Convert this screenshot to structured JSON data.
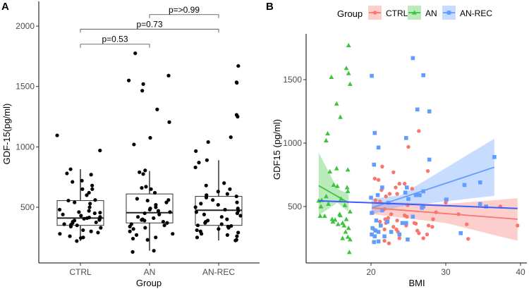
{
  "chart_data": [
    {
      "type": "box",
      "panel_label": "A",
      "xlabel": "Group",
      "ylabel": "GDF-15(pg/ml)",
      "categories": [
        "CTRL",
        "AN",
        "AN-REC"
      ],
      "yticks": [
        500,
        1000,
        1500,
        2000
      ],
      "ylim": [
        40,
        2200
      ],
      "boxes": [
        {
          "q1": 350,
          "median": 410,
          "q3": 555,
          "lower": 220,
          "upper": 815
        },
        {
          "q1": 370,
          "median": 455,
          "q3": 610,
          "lower": 140,
          "upper": 800
        },
        {
          "q1": 350,
          "median": 475,
          "q3": 590,
          "lower": 225,
          "upper": 890
        }
      ],
      "points": [
        [
          1095,
          970,
          815,
          780,
          770,
          720,
          710,
          680,
          650,
          650,
          620,
          600,
          560,
          555,
          540,
          530,
          500,
          480,
          470,
          460,
          455,
          450,
          440,
          430,
          420,
          415,
          410,
          405,
          400,
          395,
          390,
          380,
          375,
          370,
          360,
          355,
          350,
          340,
          330,
          310,
          300,
          290,
          280,
          260,
          250,
          245,
          220
        ],
        [
          1775,
          1590,
          1550,
          1520,
          1465,
          1310,
          1205,
          1075,
          1020,
          805,
          790,
          775,
          670,
          660,
          650,
          620,
          570,
          560,
          555,
          540,
          520,
          500,
          490,
          480,
          470,
          460,
          450,
          440,
          420,
          410,
          400,
          395,
          390,
          380,
          370,
          360,
          350,
          340,
          330,
          320,
          300,
          280,
          270,
          250,
          240,
          230,
          140,
          130
        ],
        [
          1670,
          1535,
          1530,
          1265,
          1250,
          1080,
          1040,
          965,
          890,
          870,
          830,
          700,
          680,
          650,
          630,
          610,
          600,
          590,
          580,
          560,
          540,
          530,
          520,
          500,
          490,
          480,
          470,
          460,
          450,
          440,
          430,
          420,
          400,
          390,
          380,
          370,
          360,
          350,
          345,
          340,
          330,
          320,
          310,
          300,
          290,
          280,
          270,
          260,
          250,
          230,
          225
        ]
      ],
      "comparisons": [
        {
          "from": 0,
          "to": 1,
          "y": 1850,
          "label": "p=0.53"
        },
        {
          "from": 0,
          "to": 2,
          "y": 1975,
          "label": "p=0.73"
        },
        {
          "from": 1,
          "to": 2,
          "y": 2095,
          "label": "p=>0.99"
        }
      ]
    },
    {
      "type": "scatter",
      "panel_label": "B",
      "xlabel": "BMI",
      "ylabel": "GDF15 (pg/ml)",
      "xlim": [
        12.3,
        41.5
      ],
      "ylim": [
        100,
        1950
      ],
      "xticks": [
        20,
        30,
        40
      ],
      "yticks": [
        500,
        1000,
        1500
      ],
      "legend": {
        "title": "Group",
        "position": "top"
      },
      "overall_fit": {
        "color": "#3d5cff",
        "line": [
          [
            13,
            545
          ],
          [
            39.6,
            485
          ]
        ]
      },
      "series": [
        {
          "name": "CTRL",
          "color": "#F8766D",
          "shape": "circle",
          "fit": [
            [
              20.1,
              490
            ],
            [
              39.6,
              400
            ]
          ],
          "ribbon": [
            [
              20.1,
              440,
              540
            ],
            [
              30,
              370,
              520
            ],
            [
              39.6,
              230,
              565
            ]
          ],
          "points": [
            [
              26.4,
              1095
            ],
            [
              25,
              970
            ],
            [
              21.5,
              815
            ],
            [
              27.6,
              780
            ],
            [
              23,
              770
            ],
            [
              20.5,
              720
            ],
            [
              21,
              710
            ],
            [
              23.8,
              680
            ],
            [
              24.5,
              680
            ],
            [
              23.3,
              650
            ],
            [
              25.5,
              640
            ],
            [
              21.4,
              630
            ],
            [
              22.5,
              600
            ],
            [
              23.5,
              600
            ],
            [
              22,
              580
            ],
            [
              30,
              555
            ],
            [
              20.6,
              550
            ],
            [
              21.2,
              540
            ],
            [
              30,
              530
            ],
            [
              37.3,
              500
            ],
            [
              24.9,
              510
            ],
            [
              21.8,
              480
            ],
            [
              28.7,
              455
            ],
            [
              31.7,
              440
            ],
            [
              20.2,
              450
            ],
            [
              22.7,
              440
            ],
            [
              24.5,
              430
            ],
            [
              24.8,
              420
            ],
            [
              22.3,
              410
            ],
            [
              21.9,
              400
            ],
            [
              28.3,
              400
            ],
            [
              23.5,
              390
            ],
            [
              21.2,
              380
            ],
            [
              22,
              370
            ],
            [
              25.8,
              370
            ],
            [
              26,
              365
            ],
            [
              32.8,
              360
            ],
            [
              24.7,
              350
            ],
            [
              27.7,
              350
            ],
            [
              28.2,
              340
            ],
            [
              39.6,
              350
            ],
            [
              23,
              340
            ],
            [
              23.4,
              320
            ],
            [
              20.4,
              320
            ],
            [
              21.8,
              320
            ],
            [
              26.2,
              310
            ],
            [
              23.6,
              300
            ],
            [
              26.4,
              290
            ],
            [
              27.5,
              280
            ],
            [
              23.8,
              250
            ],
            [
              27,
              250
            ],
            [
              33,
              245
            ],
            [
              21.8,
              230
            ],
            [
              22.4,
              210
            ]
          ]
        },
        {
          "name": "AN",
          "color": "#3DC43D",
          "shape": "triangle",
          "fit": [
            [
              13,
              665
            ],
            [
              17,
              530
            ]
          ],
          "ribbon": [
            [
              13,
              430,
              925
            ],
            [
              15.5,
              530,
              640
            ],
            [
              17,
              460,
              600
            ]
          ],
          "points": [
            [
              17,
              1770
            ],
            [
              16.7,
              1590
            ],
            [
              17,
              1550
            ],
            [
              14.7,
              1520
            ],
            [
              17.2,
              1465
            ],
            [
              15.4,
              1310
            ],
            [
              15.9,
              1205
            ],
            [
              14.2,
              1075
            ],
            [
              14,
              1020
            ],
            [
              15.4,
              800
            ],
            [
              16.9,
              790
            ],
            [
              14.5,
              775
            ],
            [
              15,
              670
            ],
            [
              15.5,
              660
            ],
            [
              16.8,
              650
            ],
            [
              16.9,
              620
            ],
            [
              14,
              580
            ],
            [
              13.4,
              550
            ],
            [
              13,
              545
            ],
            [
              16,
              560
            ],
            [
              13.3,
              500
            ],
            [
              14.3,
              520
            ],
            [
              16.5,
              510
            ],
            [
              17.2,
              460
            ],
            [
              15.9,
              430
            ],
            [
              13.2,
              425
            ],
            [
              13.8,
              425
            ],
            [
              14.8,
              400
            ],
            [
              15.2,
              395
            ],
            [
              14.9,
              380
            ],
            [
              16.2,
              370
            ],
            [
              15.6,
              360
            ],
            [
              16.4,
              350
            ],
            [
              17,
              330
            ],
            [
              16.6,
              300
            ],
            [
              16.2,
              250
            ],
            [
              16.9,
              260
            ],
            [
              17.2,
              240
            ],
            [
              17.1,
              140
            ],
            [
              15.8,
              440
            ],
            [
              16.7,
              400
            ]
          ]
        },
        {
          "name": "AN-REC",
          "color": "#619CFF",
          "shape": "square",
          "fit": [
            [
              20.1,
              490
            ],
            [
              36.5,
              810
            ]
          ],
          "ribbon": [
            [
              20.1,
              440,
              560
            ],
            [
              24,
              500,
              590
            ],
            [
              36.5,
              585,
              1035
            ]
          ],
          "points": [
            [
              25.6,
              1670
            ],
            [
              20.1,
              1530
            ],
            [
              27,
              1535
            ],
            [
              26.2,
              1265
            ],
            [
              27.8,
              1250
            ],
            [
              20.5,
              1080
            ],
            [
              24.7,
              1040
            ],
            [
              21,
              965
            ],
            [
              27.8,
              870
            ],
            [
              36.5,
              890
            ],
            [
              20.4,
              830
            ],
            [
              32.5,
              670
            ],
            [
              34.6,
              690
            ],
            [
              21.5,
              650
            ],
            [
              24.8,
              650
            ],
            [
              26,
              590
            ],
            [
              26.5,
              590
            ],
            [
              27,
              620
            ],
            [
              24.6,
              610
            ],
            [
              20.9,
              590
            ],
            [
              20,
              570
            ],
            [
              25,
              560
            ],
            [
              22.3,
              530
            ],
            [
              34.6,
              520
            ],
            [
              35.4,
              500
            ],
            [
              27,
              500
            ],
            [
              26.8,
              490
            ],
            [
              20.1,
              450
            ],
            [
              21.5,
              470
            ],
            [
              20.7,
              390
            ],
            [
              22.2,
              380
            ],
            [
              21.3,
              350
            ],
            [
              24.2,
              370
            ],
            [
              24.7,
              370
            ],
            [
              20.2,
              330
            ],
            [
              20.6,
              310
            ],
            [
              21,
              300
            ],
            [
              22.7,
              300
            ],
            [
              23.8,
              280
            ],
            [
              20.1,
              280
            ],
            [
              20.5,
              265
            ],
            [
              21.8,
              265
            ],
            [
              32,
              290
            ],
            [
              24.9,
              240
            ],
            [
              20.4,
              220
            ],
            [
              21,
              225
            ],
            [
              30.1,
              555
            ],
            [
              25.6,
              420
            ]
          ]
        }
      ]
    }
  ]
}
